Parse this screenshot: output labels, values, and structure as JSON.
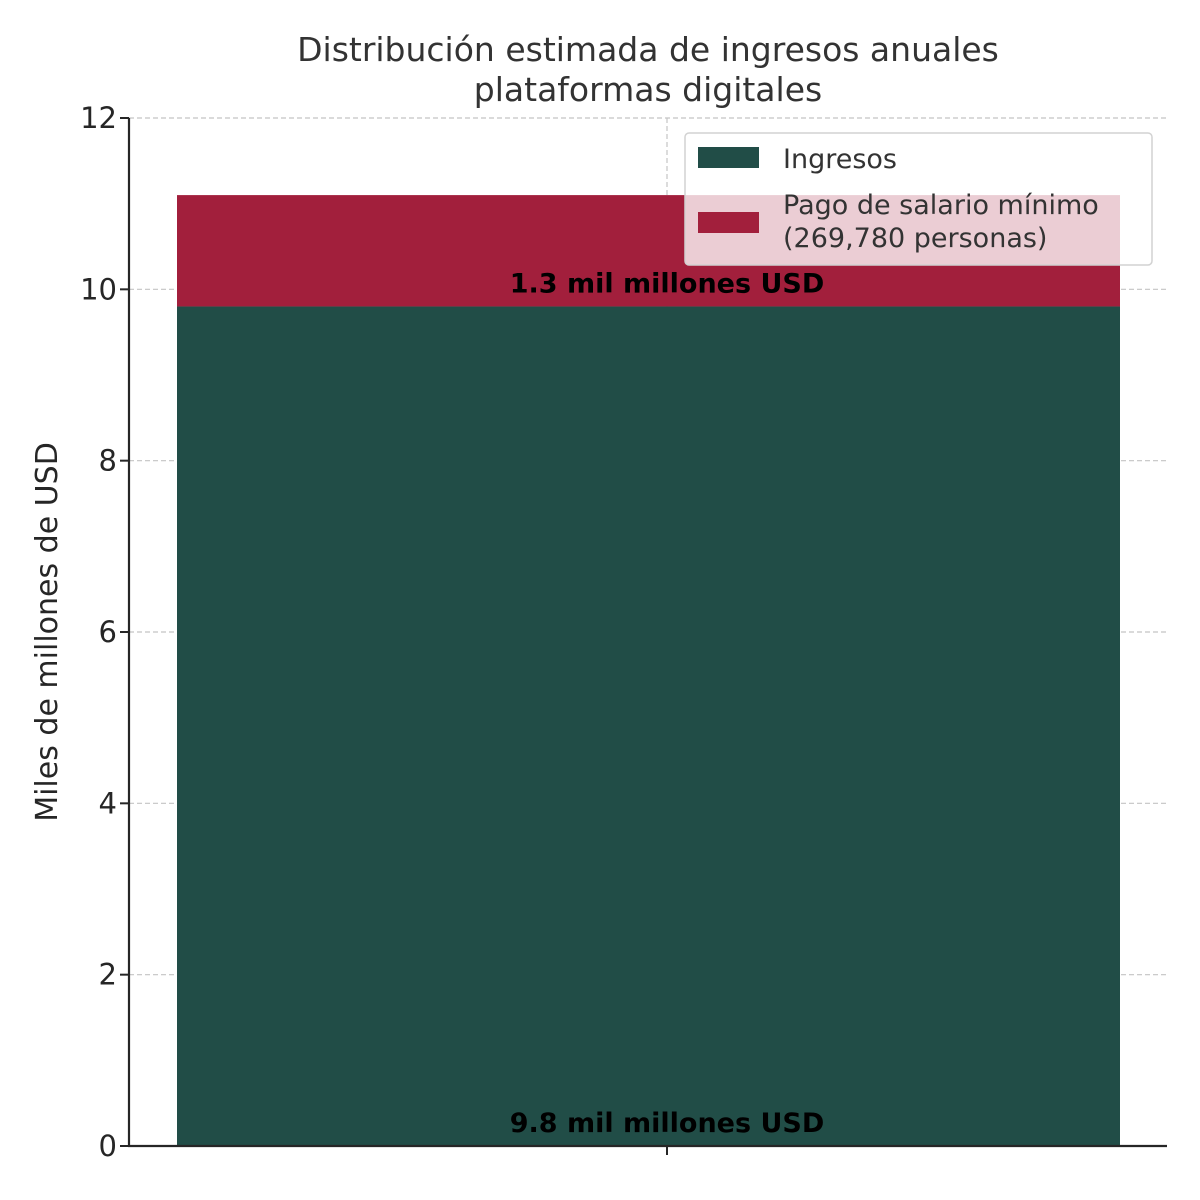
{
  "chart_data": {
    "type": "bar",
    "stacked": true,
    "title_lines": [
      "Distribución estimada de ingresos anuales",
      "plataformas digitales"
    ],
    "xlabel": "",
    "ylabel": "Miles de millones de USD",
    "ylim": [
      0,
      12
    ],
    "yticks": [
      0,
      2,
      4,
      6,
      8,
      10,
      12
    ],
    "grid": true,
    "legend_position": "top-right",
    "categories": [
      ""
    ],
    "series": [
      {
        "name": "Ingresos",
        "values": [
          9.8
        ],
        "color": "#214d47",
        "data_label": "9.8 mil millones USD"
      },
      {
        "name_lines": [
          "Pago de salario mínimo",
          "(269,780 personas)"
        ],
        "values": [
          1.3
        ],
        "color": "#a21f3c",
        "data_label": "1.3 mil millones USD"
      }
    ]
  }
}
